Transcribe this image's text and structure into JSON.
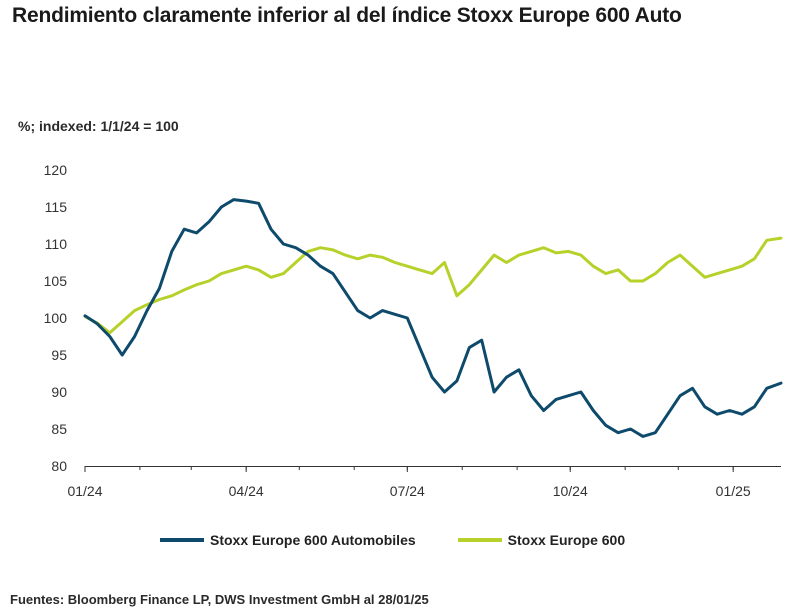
{
  "title": "Rendimiento claramente inferior al del índice Stoxx Europe 600 Auto",
  "subtitle": "%; indexed: 1/1/24 = 100",
  "source": "Fuentes: Bloomberg Finance LP, DWS Investment GmbH al 28/01/25",
  "colors": {
    "automobiles": "#0e4a6b",
    "europe600": "#b7d12a",
    "axis": "#333333"
  },
  "chart_data": {
    "type": "line",
    "title": "Rendimiento claramente inferior al del índice Stoxx Europe 600 Auto",
    "ylabel": "%; indexed: 1/1/24 = 100",
    "xlabel": "",
    "ylim": [
      80,
      120
    ],
    "yticks": [
      80,
      85,
      90,
      95,
      100,
      105,
      110,
      115,
      120
    ],
    "xlim": [
      "2024-01-01",
      "2025-01-28"
    ],
    "xticks": [
      "01/24",
      "04/24",
      "07/24",
      "10/24",
      "01/25"
    ],
    "xtick_dates": [
      "2024-01-01",
      "2024-04-01",
      "2024-07-01",
      "2024-10-01",
      "2025-01-01"
    ],
    "grid": false,
    "legend_position": "bottom",
    "x": [
      "2024-01-01",
      "2024-01-08",
      "2024-01-15",
      "2024-01-22",
      "2024-01-29",
      "2024-02-05",
      "2024-02-12",
      "2024-02-19",
      "2024-02-26",
      "2024-03-04",
      "2024-03-11",
      "2024-03-18",
      "2024-03-25",
      "2024-04-01",
      "2024-04-08",
      "2024-04-15",
      "2024-04-22",
      "2024-04-29",
      "2024-05-06",
      "2024-05-13",
      "2024-05-20",
      "2024-05-27",
      "2024-06-03",
      "2024-06-10",
      "2024-06-17",
      "2024-06-24",
      "2024-07-01",
      "2024-07-08",
      "2024-07-15",
      "2024-07-22",
      "2024-07-29",
      "2024-08-05",
      "2024-08-12",
      "2024-08-19",
      "2024-08-26",
      "2024-09-02",
      "2024-09-09",
      "2024-09-16",
      "2024-09-23",
      "2024-09-30",
      "2024-10-07",
      "2024-10-14",
      "2024-10-21",
      "2024-10-28",
      "2024-11-04",
      "2024-11-11",
      "2024-11-18",
      "2024-11-25",
      "2024-12-02",
      "2024-12-09",
      "2024-12-16",
      "2024-12-23",
      "2024-12-30",
      "2025-01-06",
      "2025-01-13",
      "2025-01-20",
      "2025-01-28"
    ],
    "series": [
      {
        "name": "Stoxx Europe 600 Automobiles",
        "color": "#0e4a6b",
        "values": [
          100.3,
          99.2,
          97.5,
          95.0,
          97.5,
          101.0,
          104.0,
          109.0,
          112.0,
          111.5,
          113.0,
          115.0,
          116.0,
          115.8,
          115.5,
          112.0,
          110.0,
          109.5,
          108.5,
          107.0,
          106.0,
          103.5,
          101.0,
          100.0,
          101.0,
          100.5,
          100.0,
          96.0,
          92.0,
          90.0,
          91.5,
          96.0,
          97.0,
          90.0,
          92.0,
          93.0,
          89.5,
          87.5,
          89.0,
          89.5,
          90.0,
          87.5,
          85.5,
          84.5,
          85.0,
          84.0,
          84.5,
          87.0,
          89.5,
          90.5,
          88.0,
          87.0,
          87.5,
          87.0,
          88.0,
          90.5,
          91.2
        ]
      },
      {
        "name": "Stoxx Europe 600",
        "color": "#b7d12a",
        "values": [
          100.2,
          99.3,
          98.0,
          99.5,
          101.0,
          101.8,
          102.5,
          103.0,
          103.8,
          104.5,
          105.0,
          106.0,
          106.5,
          107.0,
          106.5,
          105.5,
          106.0,
          107.5,
          109.0,
          109.5,
          109.2,
          108.5,
          108.0,
          108.5,
          108.2,
          107.5,
          107.0,
          106.5,
          106.0,
          107.5,
          103.0,
          104.5,
          106.5,
          108.5,
          107.5,
          108.5,
          109.0,
          109.5,
          108.8,
          109.0,
          108.5,
          107.0,
          106.0,
          106.5,
          105.0,
          105.0,
          106.0,
          107.5,
          108.5,
          107.0,
          105.5,
          106.0,
          106.5,
          107.0,
          108.0,
          110.5,
          110.8
        ]
      }
    ]
  }
}
